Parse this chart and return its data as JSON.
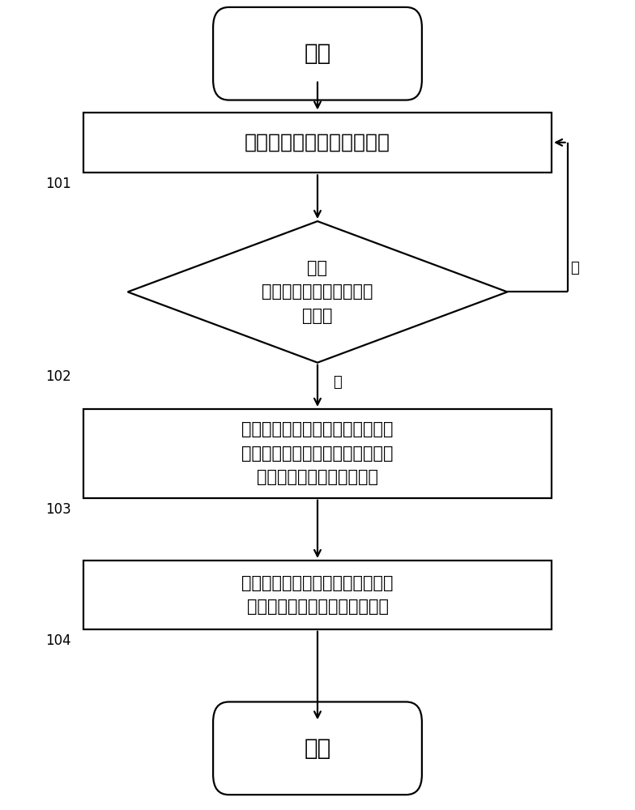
{
  "bg_color": "#ffffff",
  "line_color": "#000000",
  "text_color": "#000000",
  "fig_width": 7.84,
  "fig_height": 10.0,
  "dpi": 100,
  "start_text": "开始",
  "end_text": "开始",
  "box1_text": "测量牵引蓄电池组的总内阻",
  "box1_label": "101",
  "diamond_line1": "判断",
  "diamond_line2": "所述总内阻是否超出第一",
  "diamond_line3": "预设值",
  "diamond_label": "102",
  "diamond_yes": "是",
  "diamond_no": "否",
  "box2_line1": "分别测量所述牵引蓄电池组内各单",
  "box2_line2": "体电池的内阻，并从中查找出内阻",
  "box2_line3": "超出第二预设值的单体电池",
  "box2_label": "103",
  "box3_line1": "输出内阻超出所述第二预设值的单",
  "box3_line2": "体电池存在连接松动的检测结果",
  "box3_label": "104"
}
